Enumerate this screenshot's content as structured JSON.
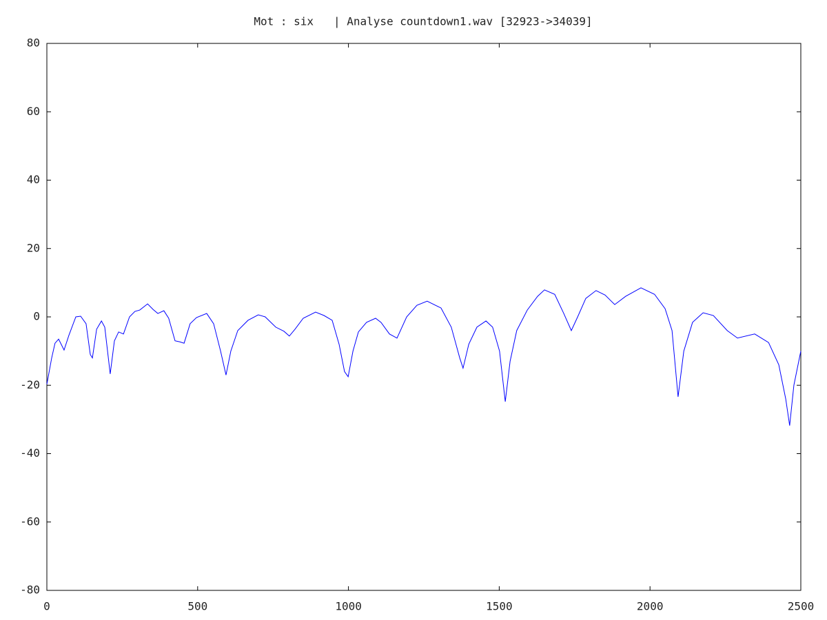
{
  "chart_data": {
    "type": "line",
    "title": "Mot : six   | Analyse countdown1.wav [32923->34039]",
    "x": [
      0,
      16,
      27,
      39,
      57,
      73,
      96,
      112,
      130,
      144,
      151,
      165,
      181,
      192,
      210,
      224,
      238,
      254,
      274,
      292,
      308,
      334,
      352,
      368,
      388,
      404,
      425,
      441,
      455,
      475,
      496,
      530,
      553,
      576,
      594,
      610,
      633,
      667,
      701,
      724,
      759,
      786,
      804,
      823,
      850,
      891,
      919,
      946,
      969,
      987,
      999,
      1015,
      1033,
      1060,
      1090,
      1108,
      1136,
      1161,
      1193,
      1227,
      1261,
      1307,
      1341,
      1369,
      1380,
      1399,
      1426,
      1456,
      1478,
      1501,
      1520,
      1536,
      1558,
      1593,
      1627,
      1650,
      1684,
      1714,
      1739,
      1760,
      1787,
      1821,
      1851,
      1883,
      1919,
      1970,
      2015,
      2050,
      2073,
      2093,
      2112,
      2141,
      2176,
      2210,
      2256,
      2290,
      2347,
      2393,
      2427,
      2450,
      2463,
      2477,
      2500
    ],
    "series": [
      {
        "color": "#0000ff",
        "values": [
          -19.7,
          -12,
          -7.7,
          -6.5,
          -9.7,
          -5.4,
          0,
          0.2,
          -2,
          -11,
          -12,
          -3.6,
          -1.2,
          -3,
          -16.7,
          -7,
          -4.4,
          -5,
          0,
          1.6,
          2,
          3.8,
          2.2,
          1,
          1.8,
          -0.4,
          -7,
          -7.3,
          -7.7,
          -2,
          -0.2,
          1,
          -2,
          -10,
          -17,
          -10,
          -4,
          -1,
          0.6,
          0,
          -3,
          -4.2,
          -5.6,
          -3.6,
          -0.4,
          1.4,
          0.4,
          -1,
          -8,
          -16,
          -17.5,
          -10,
          -4.4,
          -1.6,
          -0.4,
          -1.6,
          -5,
          -6.2,
          0,
          3.4,
          4.6,
          2.6,
          -3,
          -12,
          -15,
          -8,
          -3,
          -1.2,
          -3,
          -10,
          -24.8,
          -13,
          -4,
          2,
          6,
          7.9,
          6.6,
          1,
          -4,
          0,
          5.4,
          7.7,
          6.4,
          3.6,
          6,
          8.5,
          6.6,
          2.4,
          -4,
          -23.4,
          -10,
          -1.6,
          1.2,
          0.4,
          -4,
          -6.2,
          -5,
          -7.5,
          -14,
          -24,
          -31.8,
          -20,
          -10
        ]
      }
    ],
    "xlim": [
      0,
      2500
    ],
    "xticks": [
      0,
      500,
      1000,
      1500,
      2000,
      2500
    ],
    "ylim": [
      -80,
      80
    ],
    "yticks": [
      -80,
      -60,
      -40,
      -20,
      0,
      20,
      40,
      60,
      80
    ]
  }
}
